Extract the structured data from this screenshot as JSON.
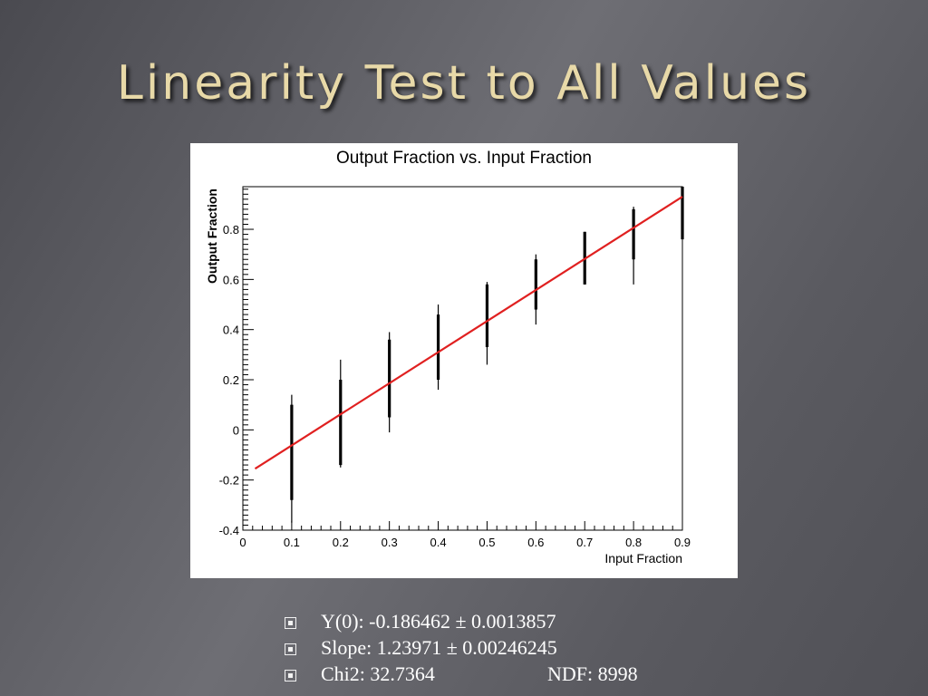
{
  "slide": {
    "title": "Linearity Test to All Values",
    "bullets": [
      {
        "text": "Y(0):  -0.186462 ± 0.0013857"
      },
      {
        "text": "Slope: 1.23971 ± 0.00246245"
      },
      {
        "text": "Chi2: 32.7364",
        "extra": "NDF: 8998"
      }
    ]
  },
  "chart_data": {
    "type": "scatter",
    "title": "Output Fraction vs. Input Fraction",
    "xlabel": "Input Fraction",
    "ylabel": "Output Fraction",
    "xlim": [
      0,
      0.9
    ],
    "ylim": [
      -0.4,
      0.97
    ],
    "xticks": [
      "0",
      "0.1",
      "0.2",
      "0.3",
      "0.4",
      "0.5",
      "0.6",
      "0.7",
      "0.8",
      "0.9"
    ],
    "yticks": [
      "-0.4",
      "-0.2",
      "0",
      "0.2",
      "0.4",
      "0.6",
      "0.8"
    ],
    "grid": false,
    "point_columns": [
      {
        "x": 0.1,
        "y_min": -0.37,
        "y_max": 0.14,
        "core_min": -0.28,
        "core_max": 0.1
      },
      {
        "x": 0.2,
        "y_min": -0.15,
        "y_max": 0.28,
        "core_min": -0.14,
        "core_max": 0.2
      },
      {
        "x": 0.3,
        "y_min": -0.01,
        "y_max": 0.39,
        "core_min": 0.05,
        "core_max": 0.36
      },
      {
        "x": 0.4,
        "y_min": 0.16,
        "y_max": 0.5,
        "core_min": 0.2,
        "core_max": 0.46
      },
      {
        "x": 0.5,
        "y_min": 0.26,
        "y_max": 0.59,
        "core_min": 0.33,
        "core_max": 0.58
      },
      {
        "x": 0.6,
        "y_min": 0.42,
        "y_max": 0.7,
        "core_min": 0.48,
        "core_max": 0.68
      },
      {
        "x": 0.7,
        "y_min": 0.58,
        "y_max": 0.79,
        "core_min": 0.58,
        "core_max": 0.79
      },
      {
        "x": 0.8,
        "y_min": 0.58,
        "y_max": 0.89,
        "core_min": 0.68,
        "core_max": 0.88
      },
      {
        "x": 0.9,
        "y_min": 0.76,
        "y_max": 0.97,
        "core_min": 0.76,
        "core_max": 0.97
      }
    ],
    "fit_line": {
      "x": [
        0.025,
        0.9
      ],
      "y": [
        -0.155,
        0.93
      ],
      "color": "#e02020"
    },
    "point_color": "#000000"
  }
}
